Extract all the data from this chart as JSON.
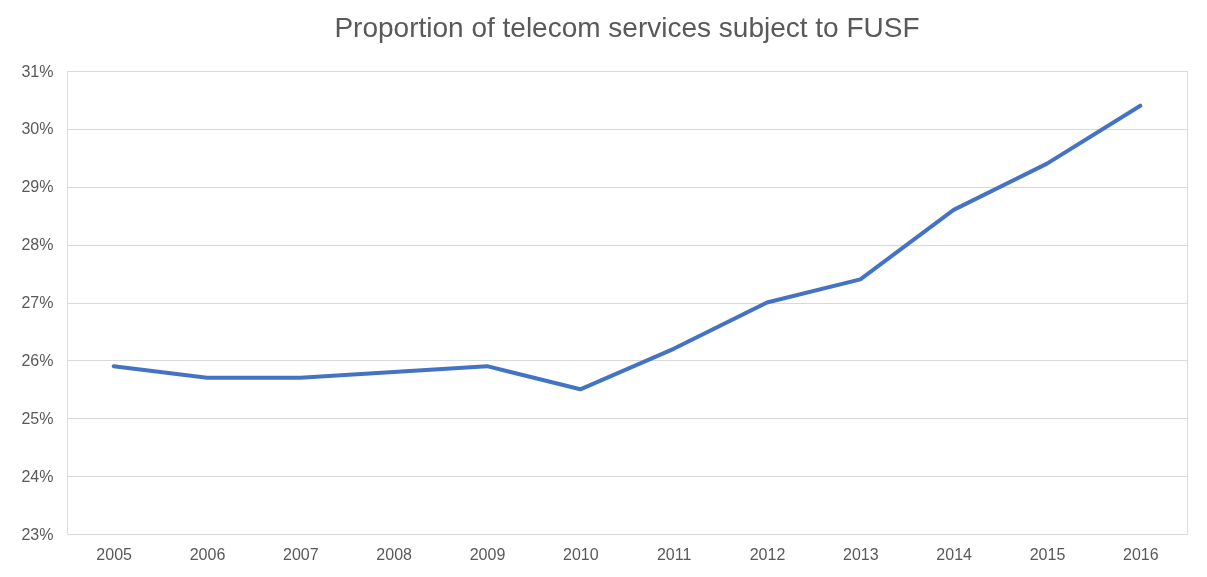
{
  "chart_data": {
    "type": "line",
    "title": "Proportion of telecom services subject to FUSF",
    "categories": [
      "2005",
      "2006",
      "2007",
      "2008",
      "2009",
      "2010",
      "2011",
      "2012",
      "2013",
      "2014",
      "2015",
      "2016"
    ],
    "series": [
      {
        "color": "#4472c4",
        "values": [
          25.9,
          25.7,
          25.7,
          25.8,
          25.9,
          25.5,
          26.2,
          27.0,
          27.4,
          28.6,
          29.4,
          30.4
        ]
      }
    ],
    "ylim": [
      23,
      31
    ],
    "yticks": [
      {
        "value": 23,
        "label": "23%"
      },
      {
        "value": 24,
        "label": "24%"
      },
      {
        "value": 25,
        "label": "25%"
      },
      {
        "value": 26,
        "label": "26%"
      },
      {
        "value": 27,
        "label": "27%"
      },
      {
        "value": 28,
        "label": "28%"
      },
      {
        "value": 29,
        "label": "29%"
      },
      {
        "value": 30,
        "label": "30%"
      },
      {
        "value": 31,
        "label": "31%"
      }
    ],
    "grid": "y",
    "legend": false,
    "marker": "none",
    "line_style": "solid"
  }
}
